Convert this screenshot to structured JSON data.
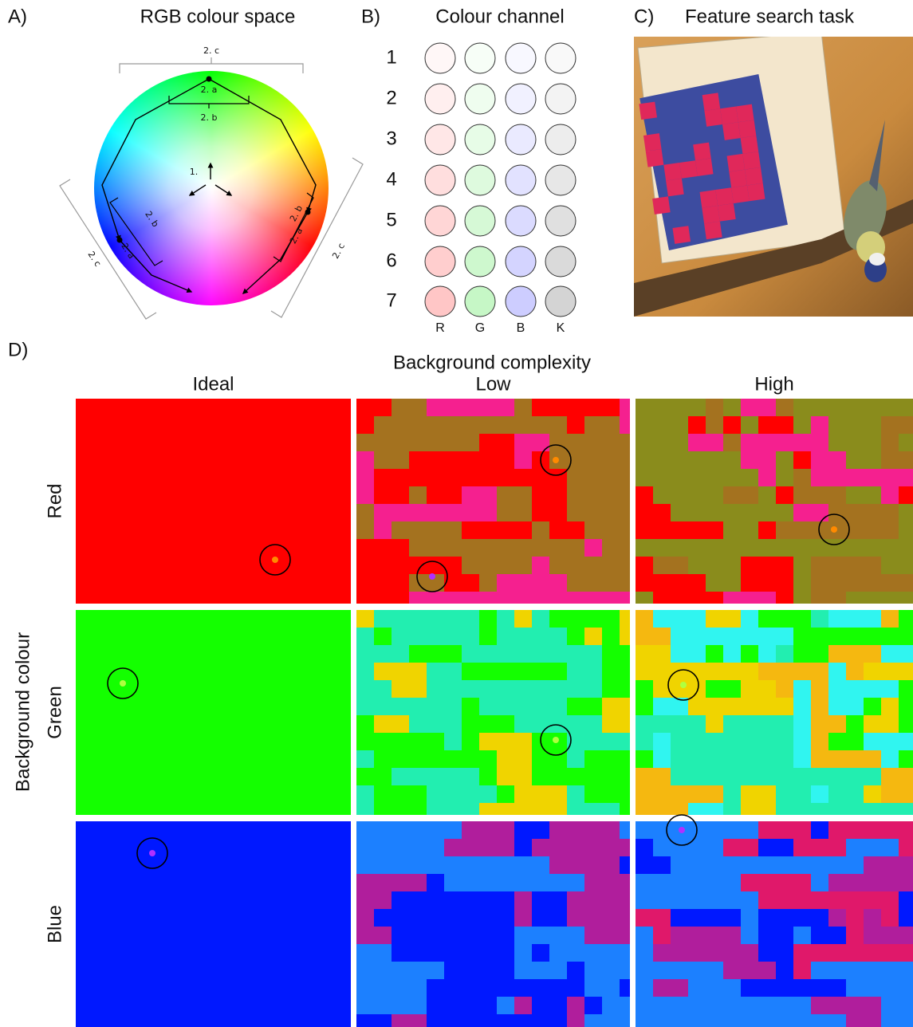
{
  "panel_a": {
    "label": "A)",
    "title": "RGB colour space",
    "annotations": {
      "top": [
        "2. c",
        "2. a",
        "2. b"
      ],
      "center": "1.",
      "left": [
        "2. c",
        "2. b",
        "2. a"
      ],
      "right": [
        "2. c",
        "2. b",
        "2. a"
      ]
    }
  },
  "panel_b": {
    "label": "B)",
    "title": "Colour channel",
    "rows": [
      "1",
      "2",
      "3",
      "4",
      "5",
      "6",
      "7"
    ],
    "columns": [
      "R",
      "G",
      "B",
      "K"
    ]
  },
  "panel_c": {
    "label": "C)",
    "title": "Feature search task"
  },
  "panel_d": {
    "label": "D)",
    "title": "Background complexity",
    "y_title": "Background colour",
    "columns": [
      "Ideal",
      "Low",
      "High"
    ],
    "rows": [
      "Red",
      "Green",
      "Blue"
    ]
  }
}
